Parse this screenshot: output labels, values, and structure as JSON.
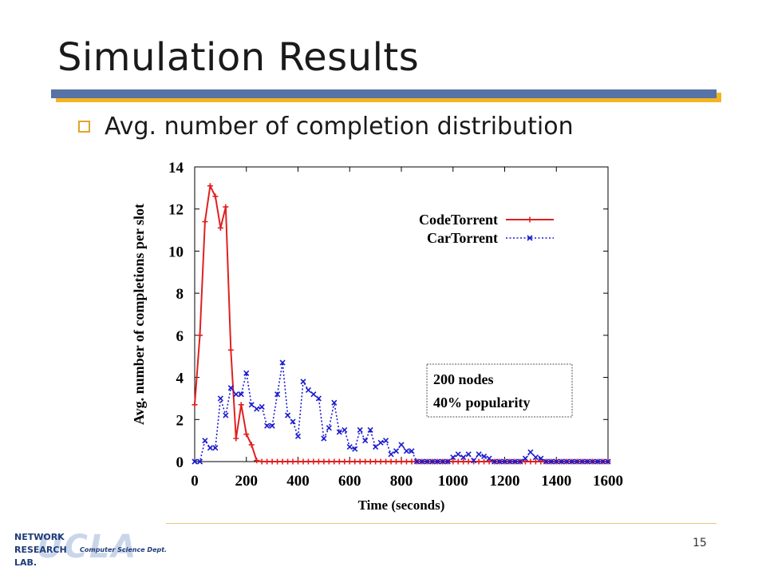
{
  "slide": {
    "title": "Simulation Results",
    "bullet": "Avg. number of completion distribution",
    "page_number": "15"
  },
  "logo": {
    "line1": "NETWORK",
    "line2": "RESEARCH",
    "line3": "LAB.",
    "dept": "Computer Science Dept.",
    "watermark": "UCLA"
  },
  "colors": {
    "title_bar": "#5772a4",
    "title_bar_shadow": "#f3b521",
    "bullet": "#e3a32c",
    "codetorrent": "#e02020",
    "cartorrent": "#1a1ad0"
  },
  "chart_data": {
    "type": "line",
    "xlabel": "Time (seconds)",
    "ylabel": "Avg. number of completions per slot",
    "xlim": [
      0,
      1600
    ],
    "ylim": [
      0,
      14
    ],
    "xticks": [
      "0",
      "200",
      "400",
      "600",
      "800",
      "1000",
      "1200",
      "1400",
      "1600"
    ],
    "yticks": [
      "0",
      "2",
      "4",
      "6",
      "8",
      "10",
      "12",
      "14"
    ],
    "legend_position": "top-right",
    "annotation": [
      "200 nodes",
      "40% popularity"
    ],
    "series": [
      {
        "name": "CodeTorrent",
        "style": "solid",
        "marker": "plus",
        "x": [
          0,
          20,
          40,
          60,
          80,
          100,
          120,
          140,
          160,
          180,
          200,
          220,
          240,
          260,
          280,
          300,
          320,
          340,
          360,
          380,
          400,
          420,
          440,
          460,
          480,
          500,
          520,
          540,
          560,
          580,
          600,
          620,
          640,
          660,
          680,
          700,
          720,
          740,
          760,
          780,
          800,
          820,
          840,
          860,
          880,
          900,
          920,
          940,
          960,
          980,
          1000,
          1020,
          1040,
          1060,
          1080,
          1100,
          1120,
          1140,
          1160,
          1180,
          1200,
          1220,
          1240,
          1260,
          1280,
          1300,
          1320,
          1340,
          1360,
          1380,
          1400,
          1420,
          1440,
          1460,
          1480,
          1500,
          1520,
          1540,
          1560,
          1580,
          1600
        ],
        "y": [
          2.7,
          6.0,
          11.4,
          13.1,
          12.6,
          11.1,
          12.1,
          5.3,
          1.1,
          2.7,
          1.3,
          0.8,
          0.05,
          0,
          0,
          0,
          0,
          0,
          0,
          0,
          0,
          0,
          0,
          0,
          0,
          0,
          0,
          0,
          0,
          0,
          0,
          0,
          0,
          0,
          0,
          0,
          0,
          0,
          0,
          0,
          0,
          0,
          0,
          0,
          0,
          0,
          0,
          0,
          0,
          0,
          0,
          0,
          0,
          0,
          0,
          0,
          0,
          0,
          0,
          0,
          0,
          0,
          0,
          0,
          0,
          0,
          0,
          0,
          0,
          0,
          0,
          0,
          0,
          0,
          0,
          0,
          0,
          0,
          0,
          0,
          0
        ]
      },
      {
        "name": "CarTorrent",
        "style": "dotted",
        "marker": "cross",
        "x": [
          0,
          20,
          40,
          60,
          80,
          100,
          120,
          140,
          160,
          180,
          200,
          220,
          240,
          260,
          280,
          300,
          320,
          340,
          360,
          380,
          400,
          420,
          440,
          460,
          480,
          500,
          520,
          540,
          560,
          580,
          600,
          620,
          640,
          660,
          680,
          700,
          720,
          740,
          760,
          780,
          800,
          820,
          840,
          860,
          880,
          900,
          920,
          940,
          960,
          980,
          1000,
          1020,
          1040,
          1060,
          1080,
          1100,
          1120,
          1140,
          1160,
          1180,
          1200,
          1220,
          1240,
          1260,
          1280,
          1300,
          1320,
          1340,
          1360,
          1380,
          1400,
          1420,
          1440,
          1460,
          1480,
          1500,
          1520,
          1540,
          1560,
          1580,
          1600
        ],
        "y": [
          0,
          0,
          1.0,
          0.65,
          0.65,
          3.0,
          2.2,
          3.5,
          3.2,
          3.2,
          4.2,
          2.7,
          2.5,
          2.6,
          1.7,
          1.7,
          3.2,
          4.7,
          2.2,
          1.9,
          1.2,
          3.8,
          3.4,
          3.2,
          3.0,
          1.1,
          1.6,
          2.8,
          1.4,
          1.5,
          0.7,
          0.6,
          1.5,
          1.0,
          1.5,
          0.7,
          0.9,
          1.0,
          0.35,
          0.5,
          0.8,
          0.5,
          0.5,
          0,
          0,
          0,
          0,
          0,
          0,
          0,
          0.2,
          0.35,
          0.2,
          0.35,
          0.05,
          0.35,
          0.25,
          0.15,
          0,
          0,
          0,
          0,
          0,
          0,
          0.15,
          0.45,
          0.2,
          0.15,
          0,
          0,
          0,
          0,
          0,
          0,
          0,
          0,
          0,
          0,
          0,
          0,
          0
        ]
      }
    ]
  }
}
